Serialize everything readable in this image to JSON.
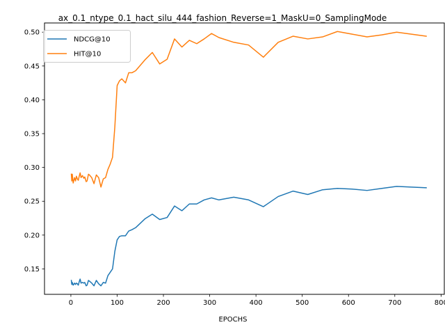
{
  "chart_data": {
    "type": "line",
    "title": "ax_0.1_ntype_0.1_hact_silu_444_fashion_Reverse=1_MaskU=0_SamplingMode",
    "xlabel": "EPOCHS",
    "ylabel": "",
    "xlim": [
      -57,
      807
    ],
    "ylim": [
      0.1124,
      0.5136
    ],
    "xticks": [
      0,
      100,
      200,
      300,
      400,
      500,
      600,
      700,
      800
    ],
    "yticks": [
      0.15,
      0.2,
      0.25,
      0.3,
      0.35,
      0.4,
      0.45,
      0.5
    ],
    "grid": false,
    "legend_position": "upper-left",
    "series": [
      {
        "name": "NDCG@10",
        "color": "#1f77b4",
        "x": [
          1,
          2,
          3,
          5,
          8,
          10,
          12,
          14,
          16,
          18,
          20,
          22,
          25,
          28,
          30,
          33,
          35,
          38,
          40,
          45,
          50,
          55,
          60,
          65,
          70,
          75,
          80,
          85,
          90,
          95,
          100,
          105,
          110,
          118,
          125,
          132,
          140,
          160,
          176,
          192,
          208,
          224,
          240,
          256,
          272,
          288,
          304,
          320,
          352,
          384,
          416,
          448,
          480,
          512,
          544,
          576,
          608,
          640,
          672,
          704,
          736,
          768
        ],
        "y": [
          0.133,
          0.127,
          0.13,
          0.126,
          0.129,
          0.127,
          0.129,
          0.128,
          0.126,
          0.131,
          0.135,
          0.129,
          0.13,
          0.129,
          0.13,
          0.125,
          0.126,
          0.133,
          0.132,
          0.129,
          0.125,
          0.133,
          0.128,
          0.125,
          0.13,
          0.129,
          0.14,
          0.145,
          0.15,
          0.176,
          0.193,
          0.198,
          0.199,
          0.199,
          0.206,
          0.208,
          0.211,
          0.224,
          0.231,
          0.223,
          0.226,
          0.243,
          0.236,
          0.246,
          0.246,
          0.252,
          0.255,
          0.252,
          0.256,
          0.252,
          0.242,
          0.257,
          0.265,
          0.26,
          0.267,
          0.269,
          0.268,
          0.266,
          0.269,
          0.272,
          0.271,
          0.27
        ]
      },
      {
        "name": "HIT@10",
        "color": "#ff7f0e",
        "x": [
          1,
          2,
          3,
          5,
          8,
          10,
          12,
          14,
          16,
          18,
          20,
          22,
          25,
          28,
          30,
          33,
          35,
          38,
          40,
          45,
          50,
          55,
          60,
          65,
          70,
          75,
          80,
          85,
          90,
          95,
          100,
          105,
          110,
          118,
          125,
          132,
          140,
          160,
          176,
          192,
          208,
          224,
          240,
          256,
          272,
          288,
          304,
          320,
          352,
          384,
          416,
          448,
          480,
          512,
          544,
          576,
          608,
          640,
          672,
          704,
          736,
          768
        ],
        "y": [
          0.29,
          0.28,
          0.29,
          0.277,
          0.285,
          0.28,
          0.287,
          0.283,
          0.281,
          0.287,
          0.292,
          0.285,
          0.288,
          0.284,
          0.286,
          0.279,
          0.28,
          0.29,
          0.289,
          0.285,
          0.276,
          0.289,
          0.285,
          0.271,
          0.283,
          0.285,
          0.297,
          0.305,
          0.315,
          0.36,
          0.421,
          0.428,
          0.431,
          0.425,
          0.44,
          0.44,
          0.443,
          0.459,
          0.47,
          0.453,
          0.46,
          0.49,
          0.478,
          0.488,
          0.483,
          0.49,
          0.498,
          0.492,
          0.485,
          0.481,
          0.463,
          0.485,
          0.494,
          0.49,
          0.493,
          0.501,
          0.497,
          0.493,
          0.496,
          0.5,
          0.497,
          0.494
        ]
      }
    ]
  }
}
